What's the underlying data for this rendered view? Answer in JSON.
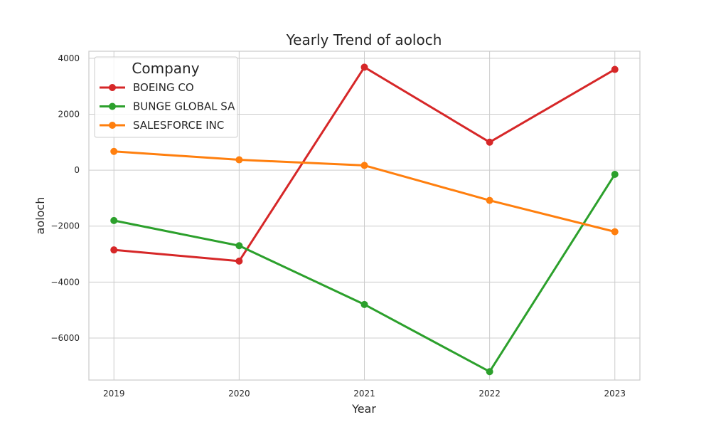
{
  "chart_data": {
    "type": "line",
    "title": "Yearly Trend of aoloch",
    "xlabel": "Year",
    "ylabel": "aoloch",
    "x": [
      2019,
      2020,
      2021,
      2022,
      2023
    ],
    "x_tick_labels": [
      "2019",
      "2020",
      "2021",
      "2022",
      "2023"
    ],
    "ylim": [
      -7500,
      4250
    ],
    "y_ticks": [
      4000,
      2000,
      0,
      -2000,
      -4000,
      -6000
    ],
    "y_tick_labels": [
      "4000",
      "2000",
      "0",
      "−2000",
      "−4000",
      "−6000"
    ],
    "grid": true,
    "legend": {
      "title": "Company",
      "placement": "top-left"
    },
    "series": [
      {
        "name": "BOEING CO",
        "color": "#d62728",
        "values": [
          -2850,
          -3250,
          3680,
          1000,
          3600
        ]
      },
      {
        "name": "BUNGE GLOBAL SA",
        "color": "#2ca02c",
        "values": [
          -1800,
          -2700,
          -4800,
          -7200,
          -150
        ]
      },
      {
        "name": "SALESFORCE INC",
        "color": "#ff7f0e",
        "values": [
          670,
          370,
          170,
          -1080,
          -2200
        ]
      }
    ]
  }
}
